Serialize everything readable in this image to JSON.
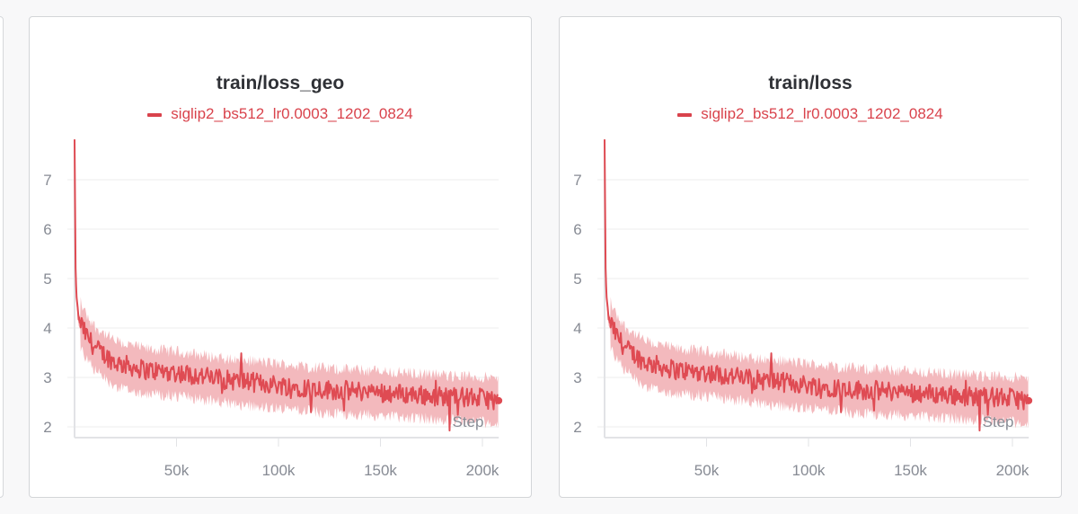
{
  "chart_data": [
    {
      "type": "line",
      "title": "train/loss_geo",
      "legend": [
        {
          "name": "siglip2_bs512_lr0.0003_1202_0824",
          "color": "#d9434c"
        }
      ],
      "xlabel": "Step",
      "ylabel": "",
      "xlim": [
        0,
        208000
      ],
      "ylim": [
        1.8,
        7.8
      ],
      "xticks": [
        {
          "v": 50000,
          "label": "50k"
        },
        {
          "v": 100000,
          "label": "100k"
        },
        {
          "v": 150000,
          "label": "150k"
        },
        {
          "v": 200000,
          "label": "200k"
        }
      ],
      "yticks": [
        {
          "v": 2,
          "label": "2"
        },
        {
          "v": 3,
          "label": "3"
        },
        {
          "v": 4,
          "label": "4"
        },
        {
          "v": 5,
          "label": "5"
        },
        {
          "v": 6,
          "label": "6"
        },
        {
          "v": 7,
          "label": "7"
        }
      ],
      "grid": true,
      "series": [
        {
          "name": "siglip2_bs512_lr0.0003_1202_0824",
          "x": [
            0,
            500,
            1000,
            2000,
            5000,
            10000,
            20000,
            35000,
            50000,
            75000,
            100000,
            125000,
            150000,
            175000,
            200000,
            208000
          ],
          "y": [
            7.8,
            5.2,
            4.6,
            4.2,
            3.9,
            3.6,
            3.3,
            3.15,
            3.1,
            2.95,
            2.85,
            2.75,
            2.7,
            2.63,
            2.58,
            2.53
          ]
        }
      ]
    },
    {
      "type": "line",
      "title": "train/loss",
      "legend": [
        {
          "name": "siglip2_bs512_lr0.0003_1202_0824",
          "color": "#d9434c"
        }
      ],
      "xlabel": "Step",
      "ylabel": "",
      "xlim": [
        0,
        208000
      ],
      "ylim": [
        1.8,
        7.8
      ],
      "xticks": [
        {
          "v": 50000,
          "label": "50k"
        },
        {
          "v": 100000,
          "label": "100k"
        },
        {
          "v": 150000,
          "label": "150k"
        },
        {
          "v": 200000,
          "label": "200k"
        }
      ],
      "yticks": [
        {
          "v": 2,
          "label": "2"
        },
        {
          "v": 3,
          "label": "3"
        },
        {
          "v": 4,
          "label": "4"
        },
        {
          "v": 5,
          "label": "5"
        },
        {
          "v": 6,
          "label": "6"
        },
        {
          "v": 7,
          "label": "7"
        }
      ],
      "grid": true,
      "series": [
        {
          "name": "siglip2_bs512_lr0.0003_1202_0824",
          "x": [
            0,
            500,
            1000,
            2000,
            5000,
            10000,
            20000,
            35000,
            50000,
            75000,
            100000,
            125000,
            150000,
            175000,
            200000,
            208000
          ],
          "y": [
            7.8,
            5.2,
            4.6,
            4.2,
            3.9,
            3.6,
            3.3,
            3.15,
            3.1,
            2.95,
            2.85,
            2.75,
            2.7,
            2.63,
            2.58,
            2.53
          ]
        }
      ]
    }
  ],
  "colors": {
    "line": "#df4b53",
    "band": "#f3b9bd"
  }
}
